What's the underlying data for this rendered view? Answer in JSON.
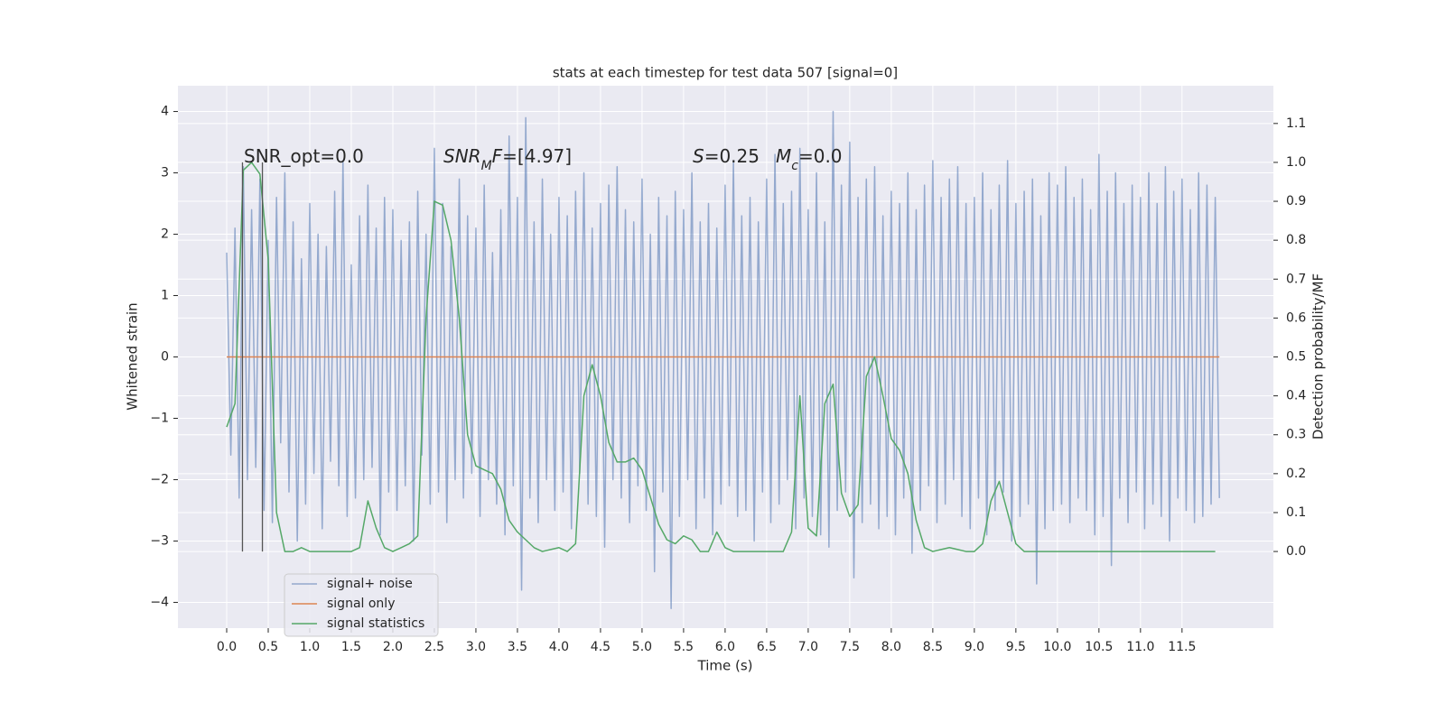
{
  "chart_data": {
    "type": "line",
    "title": "stats at each timestep for test data 507 [signal=0]",
    "xlabel": "Time (s)",
    "ylabel": "Whitened strain",
    "y2label": "Detection probability/MF",
    "xlim": [
      -0.587,
      12.6
    ],
    "ylim": [
      -4.42,
      4.42
    ],
    "y2lim": [
      -0.197,
      1.197
    ],
    "xticks": [
      {
        "value": 0,
        "label": "0.0"
      },
      0.5,
      {
        "value": 1,
        "label": "1.0"
      },
      1.5,
      {
        "value": 2,
        "label": "2.0"
      },
      2.5,
      {
        "value": 3,
        "label": "3.0"
      },
      3.5,
      {
        "value": 4,
        "label": "4.0"
      },
      4.5,
      {
        "value": 5,
        "label": "5.0"
      },
      5.5,
      {
        "value": 6,
        "label": "6.0"
      },
      6.5,
      {
        "value": 7,
        "label": "7.0"
      },
      7.5,
      {
        "value": 8,
        "label": "8.0"
      },
      8.5,
      {
        "value": 9,
        "label": "9.0"
      },
      9.5,
      {
        "value": 10,
        "label": "10.0"
      },
      10.5,
      {
        "value": 11,
        "label": "11.0"
      },
      11.5
    ],
    "yticks": [
      {
        "value": -4,
        "label": "−4"
      },
      {
        "value": -3,
        "label": "−3"
      },
      {
        "value": -2,
        "label": "−2"
      },
      {
        "value": -1,
        "label": "−1"
      },
      0,
      1,
      2,
      3,
      4
    ],
    "y2ticks": [
      {
        "value": 0,
        "label": "0.0"
      },
      0.1,
      0.2,
      0.3,
      0.4,
      0.5,
      0.6,
      0.7,
      0.8,
      0.9,
      {
        "value": 1,
        "label": "1.0"
      },
      1.1
    ],
    "grid": true,
    "background": "#eaeaf2",
    "legend": "lower left",
    "series": [
      {
        "name": "signal+ noise",
        "color": "#4c72b0",
        "opacity": 0.55,
        "x": [
          0,
          0.05,
          0.1,
          0.15,
          0.2,
          0.25,
          0.3,
          0.35,
          0.4,
          0.45,
          0.5,
          0.55,
          0.6,
          0.65,
          0.7,
          0.75,
          0.8,
          0.85,
          0.9,
          0.95,
          1,
          1.05,
          1.1,
          1.15,
          1.2,
          1.25,
          1.3,
          1.35,
          1.4,
          1.45,
          1.5,
          1.55,
          1.6,
          1.65,
          1.7,
          1.75,
          1.8,
          1.85,
          1.9,
          1.95,
          2,
          2.05,
          2.1,
          2.15,
          2.2,
          2.25,
          2.3,
          2.35,
          2.4,
          2.45,
          2.5,
          2.55,
          2.6,
          2.65,
          2.7,
          2.75,
          2.8,
          2.85,
          2.9,
          2.95,
          3,
          3.05,
          3.1,
          3.15,
          3.2,
          3.25,
          3.3,
          3.35,
          3.4,
          3.45,
          3.5,
          3.55,
          3.6,
          3.65,
          3.7,
          3.75,
          3.8,
          3.85,
          3.9,
          3.95,
          4,
          4.05,
          4.1,
          4.15,
          4.2,
          4.25,
          4.3,
          4.35,
          4.4,
          4.45,
          4.5,
          4.55,
          4.6,
          4.65,
          4.7,
          4.75,
          4.8,
          4.85,
          4.9,
          4.95,
          5,
          5.05,
          5.1,
          5.15,
          5.2,
          5.25,
          5.3,
          5.35,
          5.4,
          5.45,
          5.5,
          5.55,
          5.6,
          5.65,
          5.7,
          5.75,
          5.8,
          5.85,
          5.9,
          5.95,
          6,
          6.05,
          6.1,
          6.15,
          6.2,
          6.25,
          6.3,
          6.35,
          6.4,
          6.45,
          6.5,
          6.55,
          6.6,
          6.65,
          6.7,
          6.75,
          6.8,
          6.85,
          6.9,
          6.95,
          7,
          7.05,
          7.1,
          7.15,
          7.2,
          7.25,
          7.3,
          7.35,
          7.4,
          7.45,
          7.5,
          7.55,
          7.6,
          7.65,
          7.7,
          7.75,
          7.8,
          7.85,
          7.9,
          7.95,
          8,
          8.05,
          8.1,
          8.15,
          8.2,
          8.25,
          8.3,
          8.35,
          8.4,
          8.45,
          8.5,
          8.55,
          8.6,
          8.65,
          8.7,
          8.75,
          8.8,
          8.85,
          8.9,
          8.95,
          9,
          9.05,
          9.1,
          9.15,
          9.2,
          9.25,
          9.3,
          9.35,
          9.4,
          9.45,
          9.5,
          9.55,
          9.6,
          9.65,
          9.7,
          9.75,
          9.8,
          9.85,
          9.9,
          9.95,
          10,
          10.05,
          10.1,
          10.15,
          10.2,
          10.25,
          10.3,
          10.35,
          10.4,
          10.45,
          10.5,
          10.55,
          10.6,
          10.65,
          10.7,
          10.75,
          10.8,
          10.85,
          10.9,
          10.95,
          11,
          11.05,
          11.1,
          11.15,
          11.2,
          11.25,
          11.3,
          11.35,
          11.4,
          11.45,
          11.5,
          11.55,
          11.6,
          11.65,
          11.7,
          11.75,
          11.8,
          11.85,
          11.9,
          11.95
        ],
        "values": [
          1.7,
          -1.6,
          2.1,
          -2.3,
          3.1,
          -2.0,
          2.4,
          -1.8,
          2.9,
          -2.5,
          1.9,
          -2.7,
          2.6,
          -1.4,
          3.0,
          -2.2,
          2.2,
          -3.0,
          1.6,
          -2.4,
          2.5,
          -1.9,
          2.0,
          -2.8,
          1.8,
          -1.7,
          2.7,
          -2.1,
          3.2,
          -2.6,
          1.5,
          -2.3,
          2.3,
          -2.0,
          2.8,
          -1.8,
          2.1,
          -2.9,
          2.6,
          -2.2,
          2.4,
          -2.5,
          1.9,
          -2.1,
          2.2,
          -3.0,
          2.7,
          -1.6,
          2.0,
          -2.4,
          3.4,
          -2.2,
          2.5,
          -2.7,
          1.8,
          -2.0,
          2.9,
          -2.3,
          2.3,
          -1.9,
          2.1,
          -2.6,
          2.8,
          -2.0,
          1.7,
          -2.4,
          2.4,
          -2.9,
          3.6,
          -2.1,
          2.6,
          -3.8,
          3.9,
          -2.3,
          2.2,
          -2.7,
          2.9,
          -2.0,
          2.0,
          -2.5,
          2.6,
          -2.2,
          2.3,
          -2.8,
          2.7,
          -1.9,
          3.0,
          -2.4,
          2.1,
          -2.6,
          2.5,
          -3.1,
          2.8,
          -2.0,
          3.1,
          -2.3,
          2.4,
          -2.7,
          2.2,
          -2.1,
          2.9,
          -2.5,
          2.0,
          -3.5,
          2.6,
          -2.2,
          2.3,
          -4.1,
          2.7,
          -2.6,
          2.4,
          -2.0,
          3.0,
          -2.8,
          2.2,
          -2.3,
          2.5,
          -2.9,
          2.1,
          -2.4,
          2.8,
          -2.1,
          3.2,
          -2.6,
          2.3,
          -2.5,
          2.6,
          -3.0,
          2.2,
          -2.2,
          2.9,
          -2.7,
          3.3,
          -2.4,
          2.5,
          -2.0,
          2.7,
          -2.8,
          3.4,
          -2.3,
          2.4,
          -2.6,
          3.0,
          -2.9,
          2.2,
          -3.1,
          4.0,
          -2.5,
          2.8,
          -2.2,
          3.5,
          -3.6,
          2.6,
          -2.7,
          2.9,
          -2.4,
          3.1,
          -2.8,
          2.3,
          -2.6,
          2.7,
          -2.9,
          2.5,
          -2.3,
          3.0,
          -3.2,
          2.4,
          -2.5,
          2.8,
          -2.1,
          3.2,
          -2.7,
          2.6,
          -2.4,
          2.9,
          -2.0,
          3.1,
          -2.6,
          2.5,
          -2.8,
          2.6,
          -2.3,
          3.0,
          -2.9,
          2.4,
          -2.5,
          2.8,
          -2.2,
          3.2,
          -3.0,
          2.5,
          -2.6,
          2.7,
          -2.4,
          2.9,
          -3.7,
          2.3,
          -2.8,
          3.0,
          -2.5,
          2.8,
          -2.4,
          3.1,
          -2.7,
          2.6,
          -2.3,
          2.9,
          -2.5,
          2.4,
          -2.9,
          3.3,
          -2.6,
          2.7,
          -3.4,
          3.0,
          -2.3,
          2.5,
          -2.7,
          2.8,
          -2.2,
          2.6,
          -2.8,
          3.0,
          -2.4,
          2.5,
          -2.6,
          3.1,
          -3.0,
          2.7,
          -2.3,
          2.9,
          -2.5,
          2.4,
          -2.7,
          3.0,
          -2.6,
          2.8,
          -2.4,
          2.6,
          -2.3
        ]
      },
      {
        "name": "signal only",
        "color": "#dd8452",
        "opacity": 1,
        "x": [
          0,
          11.95
        ],
        "values": [
          0,
          0
        ]
      },
      {
        "name": "signal statistics",
        "color": "#55a868",
        "opacity": 1,
        "axis": "y2",
        "x": [
          0,
          0.1,
          0.2,
          0.3,
          0.4,
          0.5,
          0.6,
          0.7,
          0.8,
          0.9,
          1,
          1.1,
          1.2,
          1.3,
          1.4,
          1.5,
          1.6,
          1.7,
          1.8,
          1.9,
          2,
          2.1,
          2.2,
          2.3,
          2.4,
          2.5,
          2.6,
          2.7,
          2.8,
          2.9,
          3,
          3.1,
          3.2,
          3.3,
          3.4,
          3.5,
          3.6,
          3.7,
          3.8,
          3.9,
          4,
          4.1,
          4.2,
          4.3,
          4.4,
          4.5,
          4.6,
          4.7,
          4.8,
          4.9,
          5,
          5.1,
          5.2,
          5.3,
          5.4,
          5.5,
          5.6,
          5.7,
          5.8,
          5.9,
          6,
          6.1,
          6.2,
          6.3,
          6.4,
          6.5,
          6.6,
          6.7,
          6.8,
          6.9,
          7,
          7.1,
          7.2,
          7.3,
          7.4,
          7.5,
          7.6,
          7.7,
          7.8,
          7.9,
          8,
          8.1,
          8.2,
          8.3,
          8.4,
          8.5,
          8.6,
          8.7,
          8.8,
          8.9,
          9,
          9.1,
          9.2,
          9.3,
          9.4,
          9.5,
          9.6,
          9.7,
          9.8,
          9.9,
          10,
          10.1,
          10.2,
          10.3,
          10.4,
          10.5,
          10.6,
          10.7,
          10.8,
          10.9,
          11,
          11.1,
          11.2,
          11.3,
          11.4,
          11.5,
          11.6,
          11.7,
          11.8,
          11.9
        ],
        "values": [
          0.32,
          0.38,
          0.98,
          1.0,
          0.97,
          0.75,
          0.1,
          0,
          0,
          0.01,
          0,
          0,
          0,
          0,
          0,
          0,
          0.01,
          0.13,
          0.06,
          0.01,
          0,
          0.01,
          0.02,
          0.04,
          0.6,
          0.9,
          0.89,
          0.8,
          0.6,
          0.3,
          0.22,
          0.21,
          0.2,
          0.16,
          0.08,
          0.05,
          0.03,
          0.01,
          0,
          0.005,
          0.01,
          0,
          0.02,
          0.4,
          0.48,
          0.4,
          0.28,
          0.23,
          0.23,
          0.24,
          0.21,
          0.14,
          0.07,
          0.03,
          0.02,
          0.04,
          0.03,
          0,
          0,
          0.05,
          0.01,
          0,
          0,
          0,
          0,
          0,
          0,
          0,
          0.05,
          0.4,
          0.06,
          0.04,
          0.38,
          0.43,
          0.15,
          0.09,
          0.12,
          0.45,
          0.5,
          0.4,
          0.29,
          0.26,
          0.2,
          0.08,
          0.01,
          0,
          0.005,
          0.01,
          0.005,
          0,
          0,
          0.02,
          0.13,
          0.18,
          0.1,
          0.02,
          0,
          0,
          0,
          0,
          0,
          0,
          0,
          0,
          0,
          0,
          0,
          0,
          0,
          0,
          0,
          0,
          0,
          0,
          0,
          0,
          0,
          0,
          0,
          0
        ]
      }
    ],
    "vlines": {
      "x": [
        0.19,
        0.43
      ],
      "y2": [
        0,
        1
      ],
      "color": "#555555"
    },
    "annotations": [
      {
        "parts": [
          {
            "text": "SNR_opt=0.0"
          }
        ]
      },
      {
        "parts": [
          {
            "text": "SNR",
            "style": "italic"
          },
          {
            "text": "M",
            "style": "sub"
          },
          {
            "text": "F",
            "style": "italic"
          },
          {
            "text": "=[4.97]"
          }
        ]
      },
      {
        "parts": [
          {
            "text": "S",
            "style": "italic"
          },
          {
            "text": "=0.25"
          }
        ]
      },
      {
        "parts": [
          {
            "text": "M",
            "style": "italic"
          },
          {
            "text": "c",
            "style": "sub"
          },
          {
            "text": "=0.0"
          }
        ]
      }
    ]
  }
}
